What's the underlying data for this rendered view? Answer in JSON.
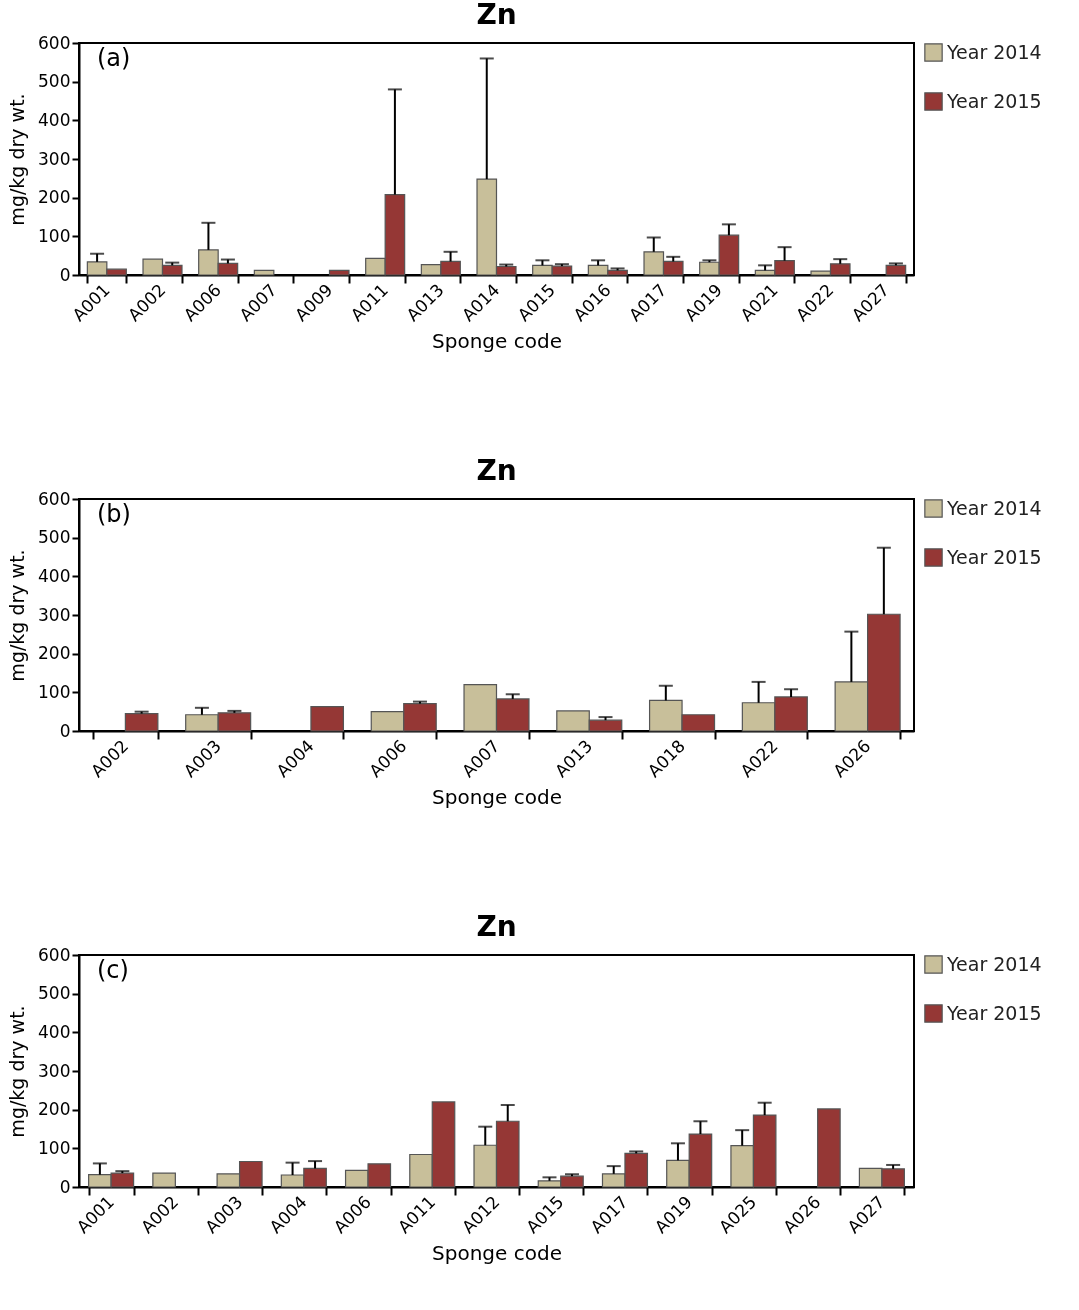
{
  "chart_data": [
    {
      "type": "bar",
      "title": "Zn",
      "xlabel": "Sponge code",
      "ylabel": "mg/kg dry wt.",
      "annotations": [
        "(a)"
      ],
      "categories": [
        "A001",
        "A002",
        "A006",
        "A007",
        "A009",
        "A011",
        "A013",
        "A014",
        "A015",
        "A016",
        "A017",
        "A019",
        "A021",
        "A022",
        "A027"
      ],
      "ylim": [
        0,
        600
      ],
      "yticks": [
        0,
        100,
        200,
        300,
        400,
        500,
        600
      ],
      "grid": false,
      "legend": "right",
      "series": [
        {
          "name": "Year 2014",
          "color": "#c8bf9a",
          "values": [
            34,
            41,
            65,
            12,
            null,
            43,
            27,
            248,
            25,
            25,
            60,
            33,
            12,
            10,
            null
          ],
          "errors": [
            21,
            null,
            70,
            null,
            null,
            null,
            null,
            312,
            13,
            13,
            37,
            5,
            13,
            null,
            null
          ]
        },
        {
          "name": "Year 2015",
          "color": "#953735",
          "values": [
            15,
            25,
            30,
            null,
            12,
            208,
            35,
            22,
            23,
            12,
            35,
            103,
            37,
            29,
            25
          ],
          "errors": [
            null,
            7,
            10,
            null,
            null,
            272,
            25,
            5,
            5,
            5,
            12,
            28,
            35,
            12,
            5
          ]
        }
      ]
    },
    {
      "type": "bar",
      "title": "Zn",
      "xlabel": "Sponge code",
      "ylabel": "mg/kg dry wt.",
      "annotations": [
        "(b)"
      ],
      "categories": [
        "A002",
        "A003",
        "A004",
        "A006",
        "A007",
        "A013",
        "A018",
        "A022",
        "A026"
      ],
      "ylim": [
        0,
        600
      ],
      "yticks": [
        0,
        100,
        200,
        300,
        400,
        500,
        600
      ],
      "grid": false,
      "legend": "right",
      "series": [
        {
          "name": "Year 2014",
          "color": "#c8bf9a",
          "values": [
            null,
            42,
            null,
            50,
            120,
            52,
            79,
            73,
            127
          ],
          "errors": [
            null,
            18,
            null,
            null,
            null,
            null,
            38,
            54,
            130
          ]
        },
        {
          "name": "Year 2015",
          "color": "#953735",
          "values": [
            45,
            47,
            63,
            71,
            83,
            28,
            42,
            88,
            302
          ],
          "errors": [
            5,
            5,
            null,
            5,
            12,
            8,
            null,
            20,
            172
          ]
        }
      ]
    },
    {
      "type": "bar",
      "title": "Zn",
      "xlabel": "Sponge code",
      "ylabel": "mg/kg dry wt.",
      "annotations": [
        "(c)"
      ],
      "categories": [
        "A001",
        "A002",
        "A003",
        "A004",
        "A006",
        "A011",
        "A012",
        "A015",
        "A017",
        "A019",
        "A025",
        "A026",
        "A027"
      ],
      "ylim": [
        0,
        600
      ],
      "yticks": [
        0,
        100,
        200,
        300,
        400,
        500,
        600
      ],
      "grid": false,
      "legend": "right",
      "series": [
        {
          "name": "Year 2014",
          "color": "#c8bf9a",
          "values": [
            32,
            36,
            34,
            31,
            43,
            84,
            108,
            16,
            34,
            69,
            107,
            null,
            48
          ],
          "errors": [
            29,
            null,
            null,
            32,
            null,
            null,
            48,
            9,
            20,
            44,
            40,
            null,
            null
          ]
        },
        {
          "name": "Year 2015",
          "color": "#953735",
          "values": [
            36,
            null,
            66,
            48,
            60,
            220,
            170,
            28,
            87,
            137,
            186,
            202,
            47
          ],
          "errors": [
            5,
            null,
            null,
            19,
            null,
            null,
            42,
            5,
            5,
            33,
            32,
            null,
            10
          ]
        }
      ]
    }
  ]
}
